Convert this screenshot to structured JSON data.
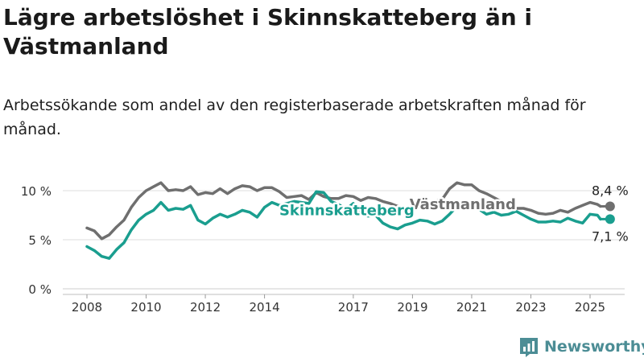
{
  "title": "Lägre arbetslöshet i Skinnskatteberg än i Västmanland",
  "subtitle": "Arbetssökande som andel av den registerbaserade arbetskraften månad för månad.",
  "brand": "Newsworthy",
  "chart_data": {
    "type": "line",
    "ylim": [
      0,
      12
    ],
    "yticks": [
      0,
      5,
      10
    ],
    "ytick_labels": [
      "0 %",
      "5 %",
      "10 %"
    ],
    "xlim": [
      2007.7,
      2025.9
    ],
    "xticks": [
      2008,
      2010,
      2012,
      2014,
      2017,
      2019,
      2021,
      2023,
      2025
    ],
    "xtick_labels": [
      "2008",
      "2010",
      "2012",
      "2014",
      "2017",
      "2019",
      "2021",
      "2023",
      "2025"
    ],
    "grid": true,
    "series": [
      {
        "name": "Västmanland",
        "color": "#6f6f6f",
        "end_label": "8,4 %",
        "points": [
          [
            2008.0,
            6.2
          ],
          [
            2008.25,
            5.9
          ],
          [
            2008.5,
            5.1
          ],
          [
            2008.75,
            5.5
          ],
          [
            2009.0,
            6.3
          ],
          [
            2009.25,
            7.0
          ],
          [
            2009.5,
            8.3
          ],
          [
            2009.75,
            9.3
          ],
          [
            2010.0,
            10.0
          ],
          [
            2010.25,
            10.4
          ],
          [
            2010.5,
            10.8
          ],
          [
            2010.75,
            10.0
          ],
          [
            2011.0,
            10.1
          ],
          [
            2011.25,
            10.0
          ],
          [
            2011.5,
            10.4
          ],
          [
            2011.75,
            9.6
          ],
          [
            2012.0,
            9.8
          ],
          [
            2012.25,
            9.7
          ],
          [
            2012.5,
            10.2
          ],
          [
            2012.75,
            9.7
          ],
          [
            2013.0,
            10.2
          ],
          [
            2013.25,
            10.5
          ],
          [
            2013.5,
            10.4
          ],
          [
            2013.75,
            10.0
          ],
          [
            2014.0,
            10.3
          ],
          [
            2014.25,
            10.3
          ],
          [
            2014.5,
            9.9
          ],
          [
            2014.75,
            9.3
          ],
          [
            2015.0,
            9.4
          ],
          [
            2015.25,
            9.5
          ],
          [
            2015.5,
            9.1
          ],
          [
            2015.75,
            9.8
          ],
          [
            2016.0,
            9.4
          ],
          [
            2016.25,
            9.2
          ],
          [
            2016.5,
            9.2
          ],
          [
            2016.75,
            9.5
          ],
          [
            2017.0,
            9.4
          ],
          [
            2017.25,
            9.0
          ],
          [
            2017.5,
            9.3
          ],
          [
            2017.75,
            9.2
          ],
          [
            2018.0,
            8.9
          ],
          [
            2018.25,
            8.7
          ],
          [
            2018.5,
            8.4
          ],
          [
            2018.75,
            8.2
          ],
          [
            2019.0,
            8.3
          ],
          [
            2019.25,
            8.5
          ],
          [
            2019.5,
            8.7
          ],
          [
            2019.75,
            8.9
          ],
          [
            2020.0,
            9.1
          ],
          [
            2020.25,
            10.2
          ],
          [
            2020.5,
            10.8
          ],
          [
            2020.75,
            10.6
          ],
          [
            2021.0,
            10.6
          ],
          [
            2021.25,
            10.0
          ],
          [
            2021.5,
            9.7
          ],
          [
            2021.75,
            9.3
          ],
          [
            2022.0,
            8.9
          ],
          [
            2022.25,
            8.4
          ],
          [
            2022.5,
            8.2
          ],
          [
            2022.75,
            8.2
          ],
          [
            2023.0,
            8.0
          ],
          [
            2023.25,
            7.7
          ],
          [
            2023.5,
            7.6
          ],
          [
            2023.75,
            7.7
          ],
          [
            2024.0,
            8.0
          ],
          [
            2024.25,
            7.8
          ],
          [
            2024.5,
            8.2
          ],
          [
            2024.75,
            8.5
          ],
          [
            2025.0,
            8.8
          ],
          [
            2025.25,
            8.6
          ],
          [
            2025.35,
            8.4
          ]
        ]
      },
      {
        "name": "Skinnskatteberg",
        "color": "#1a9e8f",
        "end_label": "7,1 %",
        "points": [
          [
            2008.0,
            4.3
          ],
          [
            2008.25,
            3.9
          ],
          [
            2008.5,
            3.3
          ],
          [
            2008.75,
            3.1
          ],
          [
            2009.0,
            4.0
          ],
          [
            2009.25,
            4.7
          ],
          [
            2009.5,
            6.0
          ],
          [
            2009.75,
            7.0
          ],
          [
            2010.0,
            7.6
          ],
          [
            2010.25,
            8.0
          ],
          [
            2010.5,
            8.8
          ],
          [
            2010.75,
            8.0
          ],
          [
            2011.0,
            8.2
          ],
          [
            2011.25,
            8.1
          ],
          [
            2011.5,
            8.5
          ],
          [
            2011.75,
            7.0
          ],
          [
            2012.0,
            6.6
          ],
          [
            2012.25,
            7.2
          ],
          [
            2012.5,
            7.6
          ],
          [
            2012.75,
            7.3
          ],
          [
            2013.0,
            7.6
          ],
          [
            2013.25,
            8.0
          ],
          [
            2013.5,
            7.8
          ],
          [
            2013.75,
            7.3
          ],
          [
            2014.0,
            8.3
          ],
          [
            2014.25,
            8.8
          ],
          [
            2014.5,
            8.5
          ],
          [
            2014.75,
            8.7
          ],
          [
            2015.0,
            8.9
          ],
          [
            2015.25,
            8.8
          ],
          [
            2015.5,
            8.7
          ],
          [
            2015.75,
            9.9
          ],
          [
            2016.0,
            9.8
          ],
          [
            2016.25,
            8.9
          ],
          [
            2016.5,
            8.6
          ],
          [
            2016.75,
            8.1
          ],
          [
            2017.0,
            8.7
          ],
          [
            2017.25,
            7.6
          ],
          [
            2017.5,
            7.4
          ],
          [
            2017.75,
            7.5
          ],
          [
            2018.0,
            6.7
          ],
          [
            2018.25,
            6.3
          ],
          [
            2018.5,
            6.1
          ],
          [
            2018.75,
            6.5
          ],
          [
            2019.0,
            6.7
          ],
          [
            2019.25,
            7.0
          ],
          [
            2019.5,
            6.9
          ],
          [
            2019.75,
            6.6
          ],
          [
            2020.0,
            6.9
          ],
          [
            2020.25,
            7.6
          ],
          [
            2020.5,
            8.4
          ],
          [
            2020.75,
            8.4
          ],
          [
            2021.0,
            8.6
          ],
          [
            2021.25,
            8.1
          ],
          [
            2021.5,
            7.6
          ],
          [
            2021.75,
            7.8
          ],
          [
            2022.0,
            7.5
          ],
          [
            2022.25,
            7.6
          ],
          [
            2022.5,
            7.9
          ],
          [
            2022.75,
            7.5
          ],
          [
            2023.0,
            7.1
          ],
          [
            2023.25,
            6.8
          ],
          [
            2023.5,
            6.8
          ],
          [
            2023.75,
            6.9
          ],
          [
            2024.0,
            6.8
          ],
          [
            2024.25,
            7.2
          ],
          [
            2024.5,
            6.9
          ],
          [
            2024.75,
            6.7
          ],
          [
            2025.0,
            7.6
          ],
          [
            2025.25,
            7.5
          ],
          [
            2025.35,
            7.1
          ]
        ]
      }
    ],
    "series_labels": {
      "Västmanland": {
        "anchor_x": 2018.9,
        "anchor_y": 8.6
      },
      "Skinnskatteberg": {
        "anchor_x": 2014.5,
        "anchor_y": 8.0
      }
    }
  }
}
